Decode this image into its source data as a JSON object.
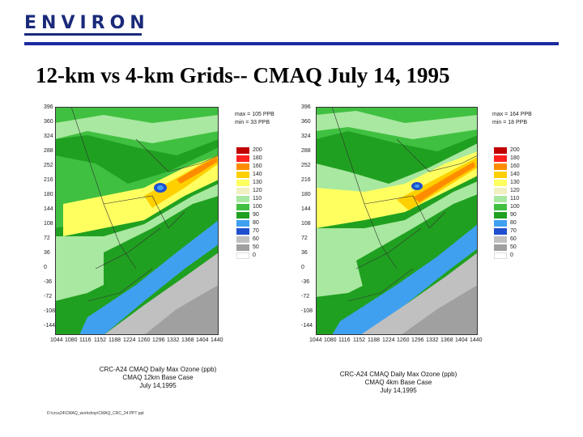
{
  "header": {
    "logo_text": "ENVIRON",
    "title": "12-km vs 4-km Grids-- CMAQ July 14, 1995"
  },
  "maps": [
    {
      "max_label": "max = 105 PPB",
      "min_label": "min = 33 PPB",
      "y_ticks": [
        "396",
        "360",
        "324",
        "288",
        "252",
        "216",
        "180",
        "144",
        "108",
        "72",
        "36",
        "0",
        "-36",
        "-72",
        "-108",
        "-144"
      ],
      "x_ticks": [
        "1044",
        "1080",
        "1116",
        "1152",
        "1188",
        "1224",
        "1260",
        "1296",
        "1332",
        "1368",
        "1404",
        "1440"
      ],
      "legend_levels": [
        "200",
        "180",
        "160",
        "140",
        "130",
        "120",
        "110",
        "100",
        "90",
        "80",
        "70",
        "60",
        "50",
        "0"
      ],
      "caption_lines": [
        "CRC-A24 CMAQ Daily Max Ozone (ppb)",
        "CMAQ 12km Base Case",
        "July 14,1995"
      ]
    },
    {
      "max_label": "max = 164 PPB",
      "min_label": "min = 18 PPB",
      "y_ticks": [
        "396",
        "360",
        "324",
        "288",
        "252",
        "216",
        "180",
        "144",
        "108",
        "72",
        "36",
        "0",
        "-36",
        "-72",
        "-108",
        "-144"
      ],
      "x_ticks": [
        "1044",
        "1080",
        "1116",
        "1152",
        "1188",
        "1224",
        "1260",
        "1296",
        "1332",
        "1368",
        "1404",
        "1440"
      ],
      "legend_levels": [
        "200",
        "180",
        "160",
        "140",
        "130",
        "120",
        "110",
        "100",
        "90",
        "80",
        "70",
        "60",
        "50",
        "0"
      ],
      "caption_lines": [
        "CRC-A24 CMAQ Daily Max Ozone (ppb)",
        "CMAQ 4km Base Case",
        "July 14,1995"
      ]
    }
  ],
  "legend_colors": [
    "#c00000",
    "#ff2020",
    "#ff8c00",
    "#ffd000",
    "#ffff60",
    "#f0f0c0",
    "#a8e8a0",
    "#40c040",
    "#20a020",
    "#40a0f0",
    "#2050d0",
    "#c0c0c0",
    "#a0a0a0",
    "#ffffff"
  ],
  "footer": {
    "path": "D:\\crca24\\CMAQ_workshop\\CMAQ_CRC_24.PPT ppt"
  }
}
